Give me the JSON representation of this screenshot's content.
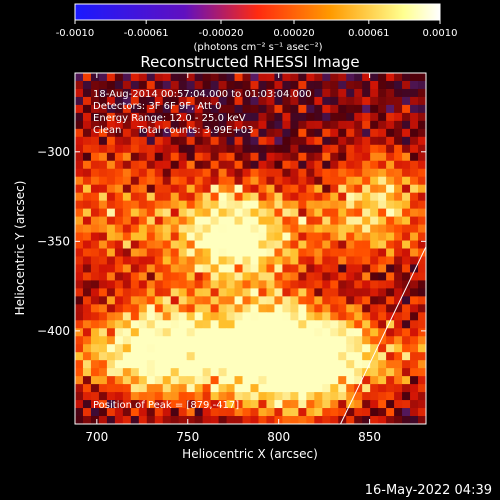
{
  "colorbar": {
    "tick_labels": [
      "-0.0010",
      "-0.00061",
      "-0.00020",
      "0.00020",
      "0.00061",
      "0.0010"
    ],
    "tick_values": [
      -0.001,
      -0.00061,
      -0.0002,
      0.0002,
      0.00061,
      0.001
    ],
    "range": [
      -0.001,
      0.001
    ],
    "unit_label": "(photons cm⁻² s⁻¹ asec⁻²)",
    "colormap": [
      "#1a1aff",
      "#6010c0",
      "#ff2a10",
      "#ff9a00",
      "#ffff90",
      "#ffffff"
    ]
  },
  "chart_data": {
    "type": "heatmap",
    "title": "Reconstructed RHESSI Image",
    "xlabel": "Heliocentric X (arcsec)",
    "ylabel": "Heliocentric Y (arcsec)",
    "xlim": [
      688,
      881
    ],
    "ylim": [
      -452,
      -256
    ],
    "x_ticks": [
      700,
      750,
      800,
      850
    ],
    "y_ticks": [
      -300,
      -350,
      -400
    ],
    "x_tick_labels": [
      "700",
      "750",
      "800",
      "850"
    ],
    "y_tick_labels": [
      "−300",
      "−350",
      "−400"
    ],
    "annotations": [
      "18-Aug-2014 00:57:04.000 to 01:03:04.000",
      "Detectors: 3F 6F 9F, Att 0",
      "Energy Range: 12.0 - 25.0 keV",
      "Clean     Total counts: 3.99E+03"
    ],
    "peak_label": "Position of Peak = [879,-417]",
    "peak": [
      879,
      -417
    ],
    "limb_line": [
      [
        834,
        -452
      ],
      [
        881,
        -353
      ]
    ],
    "hotspots": [
      {
        "x": 775,
        "y": -345,
        "amp": 0.0009
      },
      {
        "x": 735,
        "y": -408,
        "amp": 0.0008
      },
      {
        "x": 790,
        "y": -412,
        "amp": 0.0009
      },
      {
        "x": 820,
        "y": -418,
        "amp": 0.0008
      },
      {
        "x": 852,
        "y": -322,
        "amp": 0.0006
      },
      {
        "x": 705,
        "y": -316,
        "amp": 0.0004
      }
    ]
  },
  "footer": {
    "timestamp": "16-May-2022 04:39"
  }
}
